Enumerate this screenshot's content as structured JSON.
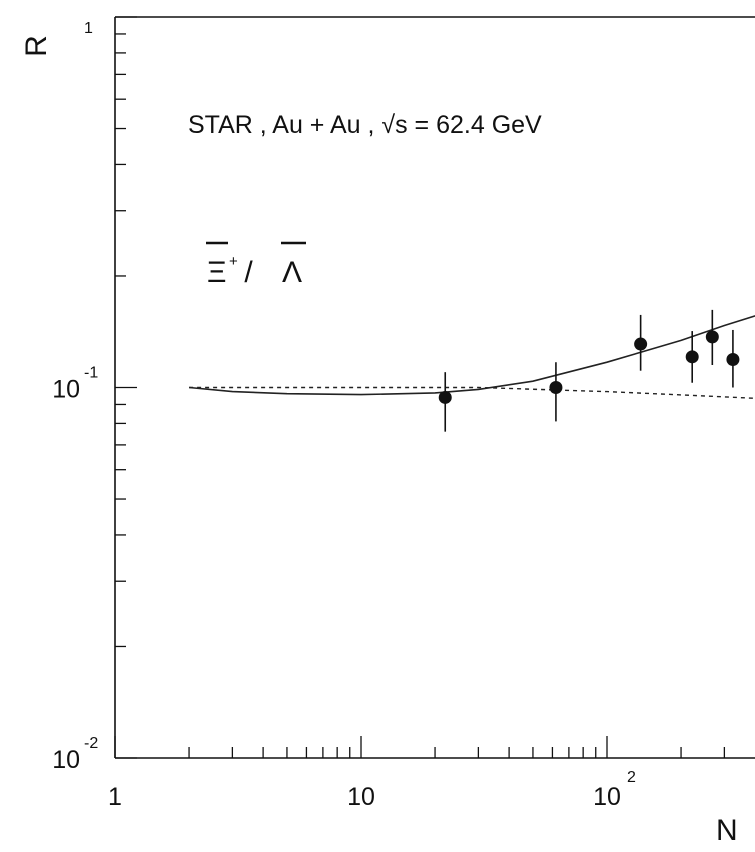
{
  "chart_data": {
    "type": "scatter",
    "y_axis_title": "R",
    "x_axis_title": "N",
    "x_scale": "log",
    "y_scale": "log",
    "xlim": [
      1,
      400
    ],
    "ylim": [
      0.01,
      1
    ],
    "x_ticks": [
      {
        "value": 1,
        "base": "1",
        "exp": ""
      },
      {
        "value": 10,
        "base": "10",
        "exp": ""
      },
      {
        "value": 100,
        "base": "10",
        "exp": "2"
      }
    ],
    "y_ticks": [
      {
        "value": 1,
        "base": "",
        "exp": "1"
      },
      {
        "value": 0.1,
        "base": "10",
        "exp": "-1"
      },
      {
        "value": 0.01,
        "base": "10",
        "exp": "-2"
      }
    ],
    "annotation": "STAR , Au + Au , √s = 62.4 GeV",
    "ratio_label": {
      "numerator": "Ξ",
      "numerator_sup": "+",
      "separator": " / ",
      "denominator": "Λ"
    },
    "series": [
      {
        "markers": "filled-circle",
        "points": [
          {
            "x": 22,
            "y": 0.094,
            "ylo": 0.076,
            "yhi": 0.11
          },
          {
            "x": 62,
            "y": 0.1,
            "ylo": 0.081,
            "yhi": 0.117
          },
          {
            "x": 137,
            "y": 0.131,
            "ylo": 0.111,
            "yhi": 0.157
          },
          {
            "x": 222,
            "y": 0.121,
            "ylo": 0.103,
            "yhi": 0.142
          },
          {
            "x": 268,
            "y": 0.137,
            "ylo": 0.115,
            "yhi": 0.162
          },
          {
            "x": 325,
            "y": 0.119,
            "ylo": 0.1,
            "yhi": 0.143
          }
        ]
      }
    ],
    "curves": [
      {
        "style": "solid",
        "points": [
          [
            2,
            0.1
          ],
          [
            3,
            0.0975
          ],
          [
            5,
            0.0962
          ],
          [
            10,
            0.0957
          ],
          [
            20,
            0.0967
          ],
          [
            30,
            0.0988
          ],
          [
            50,
            0.104
          ],
          [
            100,
            0.117
          ],
          [
            200,
            0.134
          ],
          [
            300,
            0.147
          ],
          [
            400,
            0.156
          ]
        ]
      },
      {
        "style": "dashed",
        "points": [
          [
            2,
            0.1
          ],
          [
            30,
            0.1
          ],
          [
            100,
            0.0975
          ],
          [
            200,
            0.0955
          ],
          [
            400,
            0.0935
          ]
        ]
      }
    ]
  }
}
